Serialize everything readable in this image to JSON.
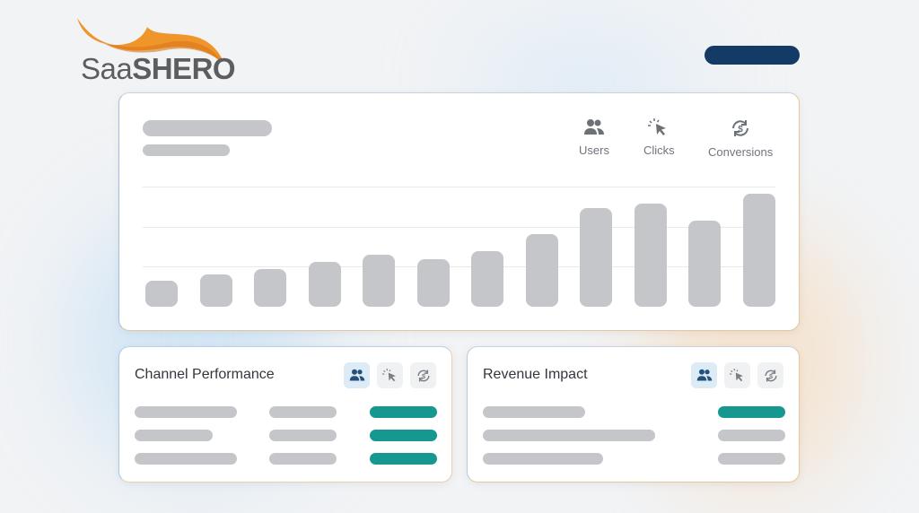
{
  "brand": {
    "logo_text_light": "Saa",
    "logo_text_bold": "SHERO",
    "accent": "#f0952a"
  },
  "main_chart": {
    "legend": [
      {
        "icon": "users-icon",
        "label": "Users"
      },
      {
        "icon": "cursor-click-icon",
        "label": "Clicks"
      },
      {
        "icon": "dollar-cycle-icon",
        "label": "Conversions"
      }
    ],
    "chart_data": {
      "type": "bar",
      "bar_levels": [
        0.65,
        0.81,
        0.94,
        1.12,
        1.3,
        1.19,
        1.39,
        1.81,
        2.46,
        2.57,
        2.15,
        2.82
      ],
      "ylim": [
        0,
        3
      ],
      "grid": true,
      "color": "#c4c6ca"
    }
  },
  "cards": [
    {
      "title": "Channel Performance",
      "active_icon": "users-icon",
      "rows": [
        [
          "gray",
          "gray",
          "teal"
        ],
        [
          "gray",
          "gray",
          "teal"
        ],
        [
          "gray",
          "gray",
          "teal"
        ]
      ]
    },
    {
      "title": "Revenue Impact",
      "active_icon": "users-icon",
      "rows": [
        [
          "gray",
          "teal"
        ],
        [
          "gray",
          "gray"
        ],
        [
          "gray",
          "gray"
        ]
      ]
    }
  ],
  "colors": {
    "teal": "#16978f",
    "navy": "#143a66",
    "skeleton": "#c4c6ca"
  }
}
